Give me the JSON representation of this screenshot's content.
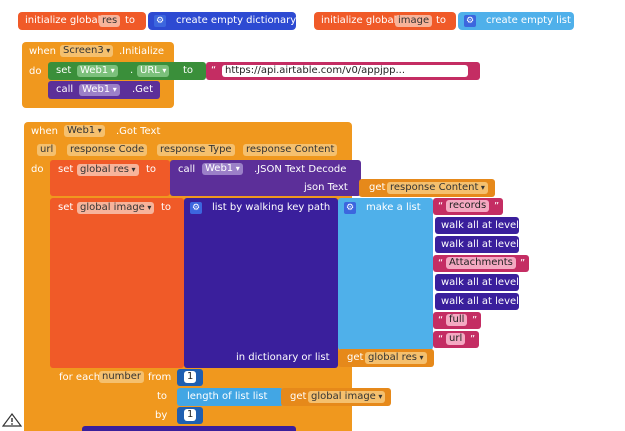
{
  "globals": {
    "init1": {
      "label": "initialize global",
      "name": "res",
      "to": "to",
      "value": "create empty dictionary"
    },
    "init2": {
      "label": "initialize global",
      "name": "image",
      "to": "to",
      "value": "create empty list"
    }
  },
  "screen_init": {
    "when": "when",
    "component": "Screen3",
    "event": ".Initialize",
    "do": "do",
    "set": "set",
    "target": "Web1",
    "dot": ".",
    "prop": "URL",
    "to": "to",
    "url": "https://api.airtable.com/v0/appjpp...",
    "call": "call",
    "call_target": "Web1",
    "call_method": ".Get"
  },
  "got_text": {
    "when": "when",
    "component": "Web1",
    "event": ".Got Text",
    "params": [
      "url",
      "response Code",
      "response Type",
      "response Content"
    ],
    "do": "do",
    "set1": {
      "set": "set",
      "var": "global res",
      "to": "to",
      "call": "call",
      "target": "Web1",
      "method": ".JSON Text Decode",
      "arg_label": "json Text",
      "get": "get",
      "get_var": "response Content"
    },
    "set2": {
      "set": "set",
      "var": "global image",
      "to": "to",
      "walk": "list by walking key path",
      "make": "make a list",
      "items": [
        "records",
        "walk all at level",
        "walk all at level",
        "Attachments",
        "walk all at level",
        "walk all at level",
        "full",
        "url"
      ],
      "in_dict": "in dictionary or list",
      "get": "get",
      "get_var": "global res"
    },
    "foreach": {
      "for": "for each",
      "var": "number",
      "from": "from",
      "from_val": "1",
      "to": "to",
      "length": "length of list  list",
      "get": "get",
      "get_var": "global image",
      "by": "by",
      "by_val": "1"
    }
  },
  "colors": {
    "control": "#f0981e",
    "setter": "#f05a28",
    "dict": "#2d4ad2",
    "list": "#4fb0ea",
    "text": "#c42d63",
    "component": "#5c2f99",
    "math": "#1f5fb1"
  },
  "icons": [
    "gear-icon",
    "warning-triangle-icon"
  ]
}
